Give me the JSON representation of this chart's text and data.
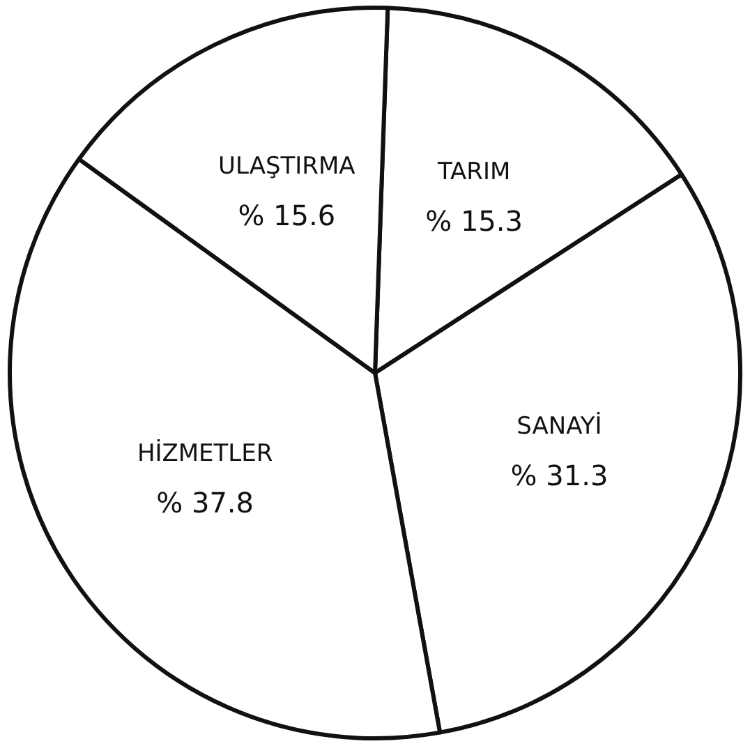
{
  "chart_data": {
    "type": "pie",
    "categories": [
      "TARIM",
      "SANAYİ",
      "HİZMETLER",
      "ULAŞTIRMA"
    ],
    "values": [
      15.3,
      31.3,
      37.8,
      15.6
    ],
    "value_labels": [
      "% 15.3",
      "% 31.3",
      "% 37.8",
      "% 15.6"
    ],
    "colors": [
      "#ffffff",
      "#ffffff",
      "#ffffff",
      "#ffffff"
    ],
    "legend": false
  }
}
